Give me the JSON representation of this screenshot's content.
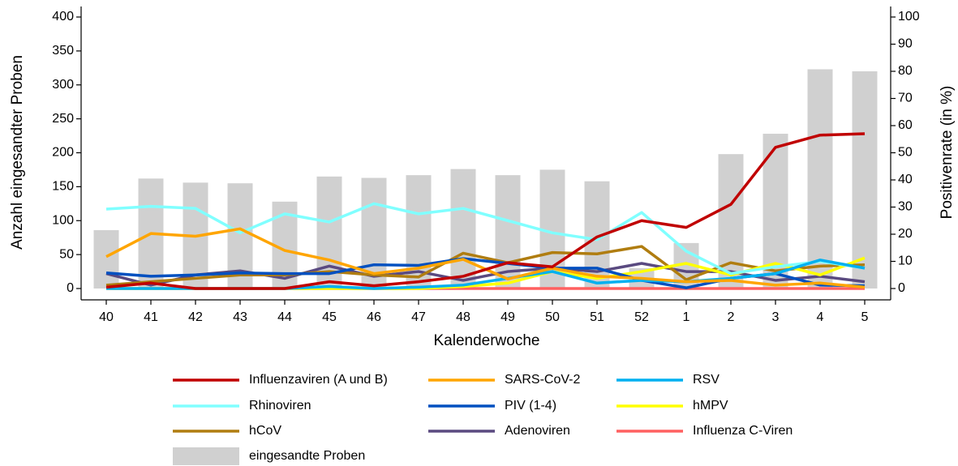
{
  "chart_data": {
    "type": "combo",
    "y_label": "Anzahl eingesandter Proben",
    "y2_label": "Positivenrate (in %)",
    "x_label": "Kalenderwoche",
    "categories": [
      "40",
      "41",
      "42",
      "43",
      "44",
      "45",
      "46",
      "47",
      "48",
      "49",
      "50",
      "51",
      "52",
      "1",
      "2",
      "3",
      "4",
      "5"
    ],
    "ylim": [
      0,
      400
    ],
    "yticks": [
      0,
      50,
      100,
      150,
      200,
      250,
      300,
      350,
      400
    ],
    "y2lim": [
      0,
      100
    ],
    "y2ticks": [
      0,
      10,
      20,
      30,
      40,
      50,
      60,
      70,
      80,
      90,
      100
    ],
    "series": [
      {
        "name": "Influenzaviren (A und B)",
        "type": "line",
        "axis": "y2",
        "color": "#c00000",
        "values": [
          0.5,
          2,
          0,
          0,
          0,
          2.5,
          1,
          2.5,
          4.5,
          9.5,
          8,
          19,
          25,
          22.5,
          31,
          52,
          56.5,
          57
        ]
      },
      {
        "name": "SARS-CoV-2",
        "type": "line",
        "axis": "y2",
        "color": "#ffa500",
        "values": [
          11.75,
          20.25,
          19.25,
          22,
          14,
          10.5,
          5.5,
          7.5,
          10.75,
          3.5,
          7.5,
          4.5,
          3.75,
          2.5,
          3,
          1.25,
          2,
          0.5
        ]
      },
      {
        "name": "RSV",
        "type": "line",
        "axis": "y2",
        "color": "#00b0f0",
        "values": [
          0,
          0,
          0,
          0,
          0,
          0.75,
          0,
          0.5,
          1.25,
          3.75,
          6.25,
          2,
          3,
          2.5,
          3.75,
          5.5,
          10.5,
          7.5
        ]
      },
      {
        "name": "Rhinoviren",
        "type": "line",
        "axis": "y2",
        "color": "#80ffff",
        "values": [
          29.25,
          30.25,
          29.5,
          20.5,
          27.5,
          24.5,
          31.25,
          27.5,
          29.5,
          25,
          20.5,
          18,
          28,
          13.75,
          5.5,
          8,
          10,
          7.5
        ]
      },
      {
        "name": "PIV (1-4)",
        "type": "line",
        "axis": "y2",
        "color": "#0050c0",
        "values": [
          5.75,
          4.5,
          5,
          5.75,
          5.5,
          5.5,
          8.75,
          8.5,
          11,
          9.25,
          7.5,
          7.5,
          3,
          0.25,
          3.75,
          5.5,
          1.25,
          1
        ]
      },
      {
        "name": "hMPV",
        "type": "line",
        "axis": "y2",
        "color": "#ffff00",
        "values": [
          0,
          0,
          0,
          0,
          0,
          0,
          0,
          0,
          0.75,
          2,
          6.25,
          3.75,
          6.25,
          9.25,
          5,
          9.25,
          5,
          11.25
        ]
      },
      {
        "name": "hCoV",
        "type": "line",
        "axis": "y2",
        "color": "#b07d10",
        "values": [
          1.25,
          2.5,
          3.75,
          5,
          5,
          6.25,
          5,
          4.25,
          13,
          9.5,
          13.25,
          12.75,
          15.5,
          3.25,
          9.5,
          6.5,
          8.25,
          8.75
        ]
      },
      {
        "name": "Adenoviren",
        "type": "line",
        "axis": "y2",
        "color": "#5a4a80",
        "values": [
          5.5,
          1.25,
          5,
          6.5,
          3.75,
          8.25,
          4.5,
          6.25,
          3,
          6.25,
          7.5,
          6.25,
          9.25,
          6.25,
          6.25,
          3,
          4.5,
          2.5
        ]
      },
      {
        "name": "Influenza C-Viren",
        "type": "line",
        "axis": "y2",
        "color": "#ff6060",
        "values": [
          0,
          0,
          0,
          0,
          0,
          0,
          0,
          0,
          0,
          0,
          0,
          0,
          0,
          0,
          0,
          0,
          0,
          0
        ]
      },
      {
        "name": "eingesandte Proben",
        "type": "bar",
        "axis": "y",
        "color": "#d0d0d0",
        "values": [
          86,
          162,
          156,
          155,
          128,
          165,
          163,
          167,
          176,
          167,
          175,
          158,
          30,
          67,
          198,
          228,
          323,
          320
        ]
      }
    ]
  }
}
